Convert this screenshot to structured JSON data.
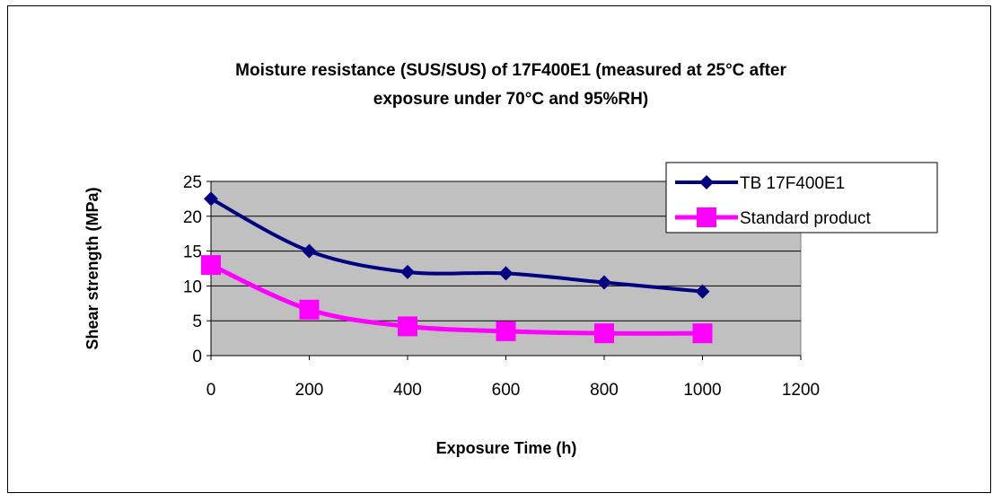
{
  "chart_data": {
    "type": "line",
    "title_line1": "Moisture resistance (SUS/SUS) of 17F400E1 (measured at 25°C after",
    "title_line2": "exposure under 70°C and 95%RH)",
    "xlabel": "Exposure Time (h)",
    "ylabel": "Shear strength (MPa)",
    "xlim": [
      0,
      1200
    ],
    "ylim": [
      0,
      25
    ],
    "xticks": [
      0,
      200,
      400,
      600,
      800,
      1000,
      1200
    ],
    "yticks": [
      0,
      5,
      10,
      15,
      20,
      25
    ],
    "grid": "horizontal",
    "plot_background": "#c0c0c0",
    "legend_position": "top-right",
    "x": [
      0,
      200,
      400,
      600,
      800,
      1000
    ],
    "series": [
      {
        "name": "TB 17F400E1",
        "values": [
          22.5,
          15,
          12,
          11.8,
          10.5,
          9.2
        ],
        "color": "#000080",
        "marker": "diamond"
      },
      {
        "name": "Standard product",
        "values": [
          13,
          6.6,
          4.2,
          3.5,
          3.2,
          3.2
        ],
        "color": "#ff00ff",
        "marker": "square"
      }
    ]
  }
}
